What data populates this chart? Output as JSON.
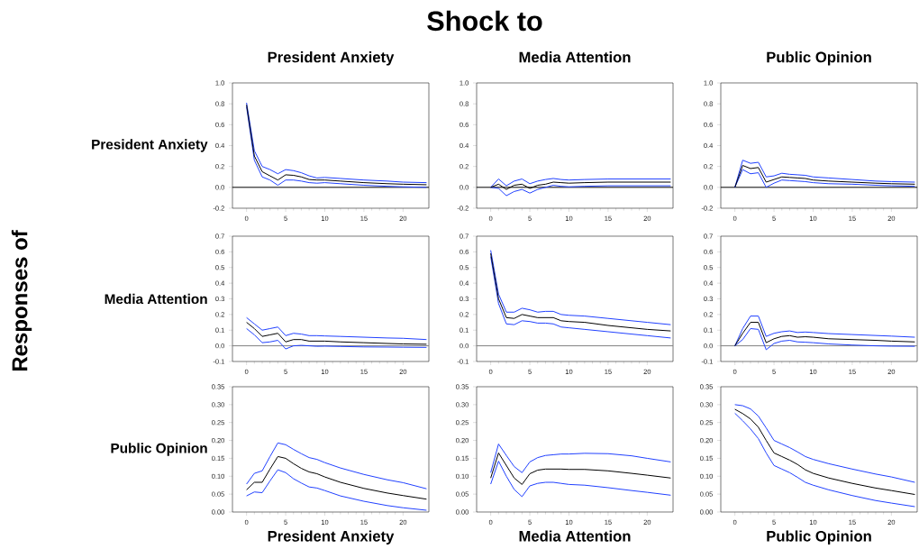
{
  "chart_data": [
    {
      "type": "line",
      "title": "President Anxiety",
      "ylabel": "President Anxiety",
      "annotations": [
        "Shock to",
        "Responses of"
      ],
      "x": [
        0,
        1,
        2,
        3,
        4,
        5,
        6,
        7,
        8,
        9,
        10,
        12,
        15,
        18,
        20,
        23
      ],
      "xlim": [
        -1.8,
        23.3
      ],
      "xticks": [
        0,
        5,
        10,
        15,
        20
      ],
      "ylim": [
        -0.2,
        1.0
      ],
      "yticks": [
        {
          "value": -0.2,
          "label": "-0.2"
        },
        {
          "value": 0.0,
          "label": "0.0"
        },
        {
          "value": 0.2,
          "label": "0.2"
        },
        {
          "value": 0.4,
          "label": "0.4"
        },
        {
          "value": 0.6,
          "label": "0.6"
        },
        {
          "value": 0.8,
          "label": "0.8"
        },
        {
          "value": 1.0,
          "label": "1.0"
        }
      ],
      "ref_lines": [
        {
          "axis": "y",
          "value": 0,
          "color": "#000000"
        }
      ],
      "series": [
        {
          "color": "#2040ff",
          "values": [
            0.81,
            0.35,
            0.2,
            0.17,
            0.13,
            0.17,
            0.16,
            0.14,
            0.11,
            0.09,
            0.095,
            0.085,
            0.07,
            0.06,
            0.05,
            0.045
          ]
        },
        {
          "color": "#2040ff",
          "values": [
            0.77,
            0.26,
            0.1,
            0.07,
            0.02,
            0.07,
            0.07,
            0.06,
            0.045,
            0.04,
            0.045,
            0.035,
            0.02,
            0.01,
            0.005,
            0.0
          ]
        },
        {
          "color": "#000000",
          "values": [
            0.79,
            0.3,
            0.15,
            0.11,
            0.07,
            0.12,
            0.115,
            0.1,
            0.075,
            0.07,
            0.07,
            0.06,
            0.045,
            0.035,
            0.03,
            0.025
          ]
        }
      ]
    },
    {
      "type": "line",
      "title": "Media Attention",
      "x": [
        0,
        1,
        2,
        3,
        4,
        5,
        6,
        7,
        8,
        9,
        10,
        12,
        15,
        18,
        20,
        23
      ],
      "xlim": [
        -1.8,
        23.3
      ],
      "xticks": [
        0,
        5,
        10,
        15,
        20
      ],
      "ylim": [
        -0.2,
        1.0
      ],
      "yticks": [
        {
          "value": -0.2,
          "label": "-0.2"
        },
        {
          "value": 0.0,
          "label": "0.0"
        },
        {
          "value": 0.2,
          "label": "0.2"
        },
        {
          "value": 0.4,
          "label": "0.4"
        },
        {
          "value": 0.6,
          "label": "0.6"
        },
        {
          "value": 0.8,
          "label": "0.8"
        },
        {
          "value": 1.0,
          "label": "1.0"
        }
      ],
      "ref_lines": [
        {
          "axis": "y",
          "value": 0,
          "color": "#000000"
        }
      ],
      "series": [
        {
          "color": "#2040ff",
          "values": [
            0,
            0.08,
            0.015,
            0.06,
            0.08,
            0.035,
            0.06,
            0.075,
            0.085,
            0.075,
            0.07,
            0.075,
            0.08,
            0.08,
            0.08,
            0.08
          ]
        },
        {
          "color": "#2040ff",
          "values": [
            0,
            -0.01,
            -0.08,
            -0.04,
            -0.02,
            -0.055,
            -0.02,
            0.0,
            0.02,
            0.01,
            0.005,
            0.01,
            0.015,
            0.015,
            0.015,
            0.015
          ]
        },
        {
          "color": "#000000",
          "values": [
            0,
            0.03,
            -0.02,
            0.02,
            0.03,
            -0.01,
            0.02,
            0.03,
            0.05,
            0.045,
            0.04,
            0.045,
            0.05,
            0.05,
            0.05,
            0.05
          ]
        }
      ]
    },
    {
      "type": "line",
      "title": "Public Opinion",
      "x": [
        0,
        1,
        2,
        3,
        4,
        5,
        6,
        7,
        8,
        9,
        10,
        12,
        15,
        18,
        20,
        23
      ],
      "xlim": [
        -1.8,
        23.3
      ],
      "xticks": [
        0,
        5,
        10,
        15,
        20
      ],
      "ylim": [
        -0.2,
        1.0
      ],
      "yticks": [
        {
          "value": -0.2,
          "label": "-0.2"
        },
        {
          "value": 0.0,
          "label": "0.0"
        },
        {
          "value": 0.2,
          "label": "0.2"
        },
        {
          "value": 0.4,
          "label": "0.4"
        },
        {
          "value": 0.6,
          "label": "0.6"
        },
        {
          "value": 0.8,
          "label": "0.8"
        },
        {
          "value": 1.0,
          "label": "1.0"
        }
      ],
      "ref_lines": [
        {
          "axis": "y",
          "value": 0,
          "color": "#000000"
        }
      ],
      "series": [
        {
          "color": "#2040ff",
          "values": [
            0,
            0.26,
            0.23,
            0.24,
            0.1,
            0.11,
            0.135,
            0.125,
            0.12,
            0.115,
            0.1,
            0.09,
            0.075,
            0.06,
            0.055,
            0.05
          ]
        },
        {
          "color": "#2040ff",
          "values": [
            0,
            0.17,
            0.13,
            0.14,
            0.0,
            0.04,
            0.07,
            0.065,
            0.06,
            0.055,
            0.045,
            0.035,
            0.03,
            0.02,
            0.015,
            0.01
          ]
        },
        {
          "color": "#000000",
          "values": [
            0,
            0.21,
            0.18,
            0.19,
            0.05,
            0.075,
            0.1,
            0.095,
            0.09,
            0.085,
            0.07,
            0.06,
            0.05,
            0.04,
            0.035,
            0.03
          ]
        }
      ]
    },
    {
      "type": "line",
      "ylabel": "Media Attention",
      "x": [
        0,
        1,
        2,
        3,
        4,
        5,
        6,
        7,
        8,
        9,
        10,
        12,
        15,
        18,
        20,
        23
      ],
      "xlim": [
        -1.8,
        23.3
      ],
      "xticks": [
        0,
        5,
        10,
        15,
        20
      ],
      "ylim": [
        -0.1,
        0.7
      ],
      "yticks": [
        {
          "value": -0.1,
          "label": "-0.1"
        },
        {
          "value": 0.0,
          "label": "0.0"
        },
        {
          "value": 0.1,
          "label": "0.1"
        },
        {
          "value": 0.2,
          "label": "0.2"
        },
        {
          "value": 0.3,
          "label": "0.3"
        },
        {
          "value": 0.4,
          "label": "0.4"
        },
        {
          "value": 0.5,
          "label": "0.5"
        },
        {
          "value": 0.6,
          "label": "0.6"
        },
        {
          "value": 0.7,
          "label": "0.7"
        }
      ],
      "ref_lines": [
        {
          "axis": "y",
          "value": 0,
          "color": "#808080"
        }
      ],
      "series": [
        {
          "color": "#2040ff",
          "values": [
            0.18,
            0.14,
            0.1,
            0.11,
            0.12,
            0.065,
            0.08,
            0.075,
            0.065,
            0.065,
            0.063,
            0.06,
            0.055,
            0.05,
            0.048,
            0.04
          ]
        },
        {
          "color": "#2040ff",
          "values": [
            0.11,
            0.07,
            0.02,
            0.025,
            0.035,
            -0.02,
            0.0,
            0.003,
            0.0,
            -0.003,
            -0.002,
            -0.004,
            -0.007,
            -0.008,
            -0.009,
            -0.01
          ]
        },
        {
          "color": "#000000",
          "values": [
            0.15,
            0.11,
            0.06,
            0.07,
            0.08,
            0.025,
            0.04,
            0.04,
            0.03,
            0.03,
            0.03,
            0.025,
            0.02,
            0.015,
            0.012,
            0.01
          ]
        }
      ]
    },
    {
      "type": "line",
      "x": [
        0,
        1,
        2,
        3,
        4,
        5,
        6,
        7,
        8,
        9,
        10,
        12,
        15,
        18,
        20,
        23
      ],
      "xlim": [
        -1.8,
        23.3
      ],
      "xticks": [
        0,
        5,
        10,
        15,
        20
      ],
      "ylim": [
        -0.1,
        0.7
      ],
      "yticks": [
        {
          "value": -0.1,
          "label": "-0.1"
        },
        {
          "value": 0.0,
          "label": "0.0"
        },
        {
          "value": 0.1,
          "label": "0.1"
        },
        {
          "value": 0.2,
          "label": "0.2"
        },
        {
          "value": 0.3,
          "label": "0.3"
        },
        {
          "value": 0.4,
          "label": "0.4"
        },
        {
          "value": 0.5,
          "label": "0.5"
        },
        {
          "value": 0.6,
          "label": "0.6"
        },
        {
          "value": 0.7,
          "label": "0.7"
        }
      ],
      "ref_lines": [
        {
          "axis": "y",
          "value": 0,
          "color": "#808080"
        }
      ],
      "series": [
        {
          "color": "#2040ff",
          "values": [
            0.61,
            0.33,
            0.215,
            0.215,
            0.24,
            0.23,
            0.215,
            0.22,
            0.22,
            0.2,
            0.195,
            0.19,
            0.175,
            0.16,
            0.15,
            0.135
          ]
        },
        {
          "color": "#2040ff",
          "values": [
            0.57,
            0.27,
            0.14,
            0.135,
            0.16,
            0.155,
            0.145,
            0.145,
            0.14,
            0.12,
            0.115,
            0.105,
            0.09,
            0.075,
            0.065,
            0.05
          ]
        },
        {
          "color": "#000000",
          "values": [
            0.59,
            0.3,
            0.18,
            0.175,
            0.2,
            0.19,
            0.18,
            0.18,
            0.18,
            0.16,
            0.155,
            0.15,
            0.13,
            0.115,
            0.105,
            0.095
          ]
        }
      ]
    },
    {
      "type": "line",
      "x": [
        0,
        1,
        2,
        3,
        4,
        5,
        6,
        7,
        8,
        9,
        10,
        12,
        15,
        18,
        20,
        23
      ],
      "xlim": [
        -1.8,
        23.3
      ],
      "xticks": [
        0,
        5,
        10,
        15,
        20
      ],
      "ylim": [
        -0.1,
        0.7
      ],
      "yticks": [
        {
          "value": -0.1,
          "label": "-0.1"
        },
        {
          "value": 0.0,
          "label": "0.0"
        },
        {
          "value": 0.1,
          "label": "0.1"
        },
        {
          "value": 0.2,
          "label": "0.2"
        },
        {
          "value": 0.3,
          "label": "0.3"
        },
        {
          "value": 0.4,
          "label": "0.4"
        },
        {
          "value": 0.5,
          "label": "0.5"
        },
        {
          "value": 0.6,
          "label": "0.6"
        },
        {
          "value": 0.7,
          "label": "0.7"
        }
      ],
      "ref_lines": [
        {
          "axis": "y",
          "value": 0,
          "color": "#808080"
        }
      ],
      "series": [
        {
          "color": "#2040ff",
          "values": [
            0,
            0.11,
            0.19,
            0.19,
            0.06,
            0.08,
            0.09,
            0.095,
            0.085,
            0.088,
            0.085,
            0.078,
            0.072,
            0.066,
            0.062,
            0.055
          ]
        },
        {
          "color": "#2040ff",
          "values": [
            0,
            0.04,
            0.11,
            0.105,
            -0.025,
            0.015,
            0.03,
            0.035,
            0.025,
            0.023,
            0.02,
            0.012,
            0.005,
            0.0,
            -0.002,
            -0.003
          ]
        },
        {
          "color": "#000000",
          "values": [
            0,
            0.08,
            0.15,
            0.15,
            0.02,
            0.045,
            0.06,
            0.065,
            0.055,
            0.058,
            0.055,
            0.045,
            0.04,
            0.035,
            0.03,
            0.025
          ]
        }
      ]
    },
    {
      "type": "line",
      "ylabel": "Public Opinion",
      "xlabel": "President Anxiety",
      "x": [
        0,
        1,
        2,
        3,
        4,
        5,
        6,
        7,
        8,
        9,
        10,
        12,
        15,
        18,
        20,
        23
      ],
      "xlim": [
        -1.8,
        23.3
      ],
      "xticks": [
        0,
        5,
        10,
        15,
        20
      ],
      "ylim": [
        0,
        0.35
      ],
      "yticks": [
        {
          "value": 0,
          "label": "0.00"
        },
        {
          "value": 0.05,
          "label": "0.05"
        },
        {
          "value": 0.1,
          "label": "0.10"
        },
        {
          "value": 0.15,
          "label": "0.15"
        },
        {
          "value": 0.2,
          "label": "0.20"
        },
        {
          "value": 0.25,
          "label": "0.25"
        },
        {
          "value": 0.3,
          "label": "0.30"
        },
        {
          "value": 0.35,
          "label": "0.35"
        }
      ],
      "series": [
        {
          "color": "#2040ff",
          "values": [
            0.078,
            0.108,
            0.115,
            0.155,
            0.193,
            0.188,
            0.175,
            0.163,
            0.152,
            0.147,
            0.138,
            0.123,
            0.105,
            0.09,
            0.082,
            0.065
          ]
        },
        {
          "color": "#2040ff",
          "values": [
            0.045,
            0.056,
            0.054,
            0.087,
            0.118,
            0.11,
            0.093,
            0.081,
            0.07,
            0.067,
            0.06,
            0.045,
            0.03,
            0.018,
            0.012,
            0.005
          ]
        },
        {
          "color": "#000000",
          "values": [
            0.062,
            0.083,
            0.083,
            0.12,
            0.155,
            0.15,
            0.135,
            0.122,
            0.112,
            0.107,
            0.098,
            0.083,
            0.066,
            0.053,
            0.046,
            0.036
          ]
        }
      ]
    },
    {
      "type": "line",
      "xlabel": "Media Attention",
      "x": [
        0,
        1,
        2,
        3,
        4,
        5,
        6,
        7,
        8,
        9,
        10,
        12,
        15,
        18,
        20,
        23
      ],
      "xlim": [
        -1.8,
        23.3
      ],
      "xticks": [
        0,
        5,
        10,
        15,
        20
      ],
      "ylim": [
        0,
        0.35
      ],
      "yticks": [
        {
          "value": 0,
          "label": "0.00"
        },
        {
          "value": 0.05,
          "label": "0.05"
        },
        {
          "value": 0.1,
          "label": "0.10"
        },
        {
          "value": 0.15,
          "label": "0.15"
        },
        {
          "value": 0.2,
          "label": "0.20"
        },
        {
          "value": 0.25,
          "label": "0.25"
        },
        {
          "value": 0.3,
          "label": "0.30"
        },
        {
          "value": 0.35,
          "label": "0.35"
        }
      ],
      "series": [
        {
          "color": "#2040ff",
          "values": [
            0.11,
            0.19,
            0.158,
            0.127,
            0.11,
            0.14,
            0.152,
            0.158,
            0.16,
            0.162,
            0.162,
            0.164,
            0.163,
            0.157,
            0.15,
            0.14
          ]
        },
        {
          "color": "#2040ff",
          "values": [
            0.078,
            0.142,
            0.1,
            0.063,
            0.043,
            0.073,
            0.08,
            0.083,
            0.083,
            0.08,
            0.077,
            0.075,
            0.068,
            0.06,
            0.055,
            0.047
          ]
        },
        {
          "color": "#000000",
          "values": [
            0.095,
            0.165,
            0.13,
            0.095,
            0.077,
            0.107,
            0.117,
            0.12,
            0.12,
            0.12,
            0.119,
            0.119,
            0.115,
            0.108,
            0.103,
            0.095
          ]
        }
      ]
    },
    {
      "type": "line",
      "xlabel": "Public Opinion",
      "x": [
        0,
        1,
        2,
        3,
        4,
        5,
        6,
        7,
        8,
        9,
        10,
        12,
        15,
        18,
        20,
        23
      ],
      "xlim": [
        -1.8,
        23.3
      ],
      "xticks": [
        0,
        5,
        10,
        15,
        20
      ],
      "ylim": [
        0,
        0.35
      ],
      "yticks": [
        {
          "value": 0,
          "label": "0.00"
        },
        {
          "value": 0.05,
          "label": "0.05"
        },
        {
          "value": 0.1,
          "label": "0.10"
        },
        {
          "value": 0.15,
          "label": "0.15"
        },
        {
          "value": 0.2,
          "label": "0.20"
        },
        {
          "value": 0.25,
          "label": "0.25"
        },
        {
          "value": 0.3,
          "label": "0.30"
        },
        {
          "value": 0.35,
          "label": "0.35"
        }
      ],
      "series": [
        {
          "color": "#2040ff",
          "values": [
            0.3,
            0.297,
            0.288,
            0.268,
            0.235,
            0.2,
            0.19,
            0.18,
            0.168,
            0.155,
            0.147,
            0.135,
            0.12,
            0.106,
            0.098,
            0.083
          ]
        },
        {
          "color": "#2040ff",
          "values": [
            0.276,
            0.255,
            0.232,
            0.205,
            0.165,
            0.13,
            0.12,
            0.11,
            0.097,
            0.083,
            0.075,
            0.062,
            0.046,
            0.032,
            0.025,
            0.015
          ]
        },
        {
          "color": "#000000",
          "values": [
            0.287,
            0.275,
            0.26,
            0.237,
            0.2,
            0.165,
            0.155,
            0.145,
            0.133,
            0.118,
            0.108,
            0.095,
            0.08,
            0.067,
            0.06,
            0.049
          ]
        }
      ]
    }
  ]
}
